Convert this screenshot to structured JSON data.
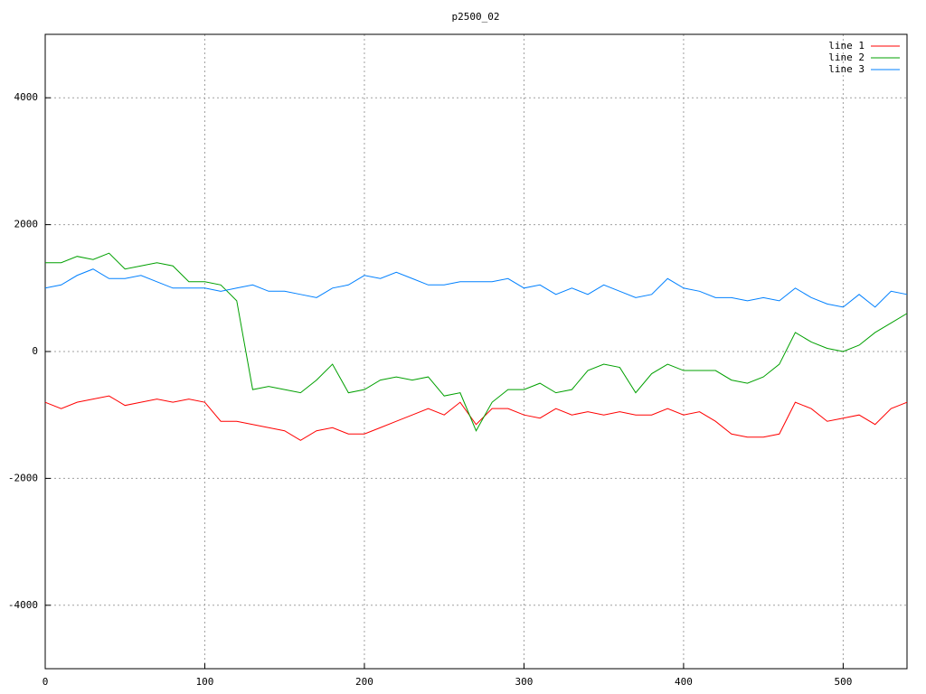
{
  "chart_data": {
    "type": "line",
    "title": "p2500_02",
    "x": [
      0,
      10,
      20,
      30,
      40,
      50,
      60,
      70,
      80,
      90,
      100,
      110,
      120,
      130,
      140,
      150,
      160,
      170,
      180,
      190,
      200,
      210,
      220,
      230,
      240,
      250,
      260,
      270,
      280,
      290,
      300,
      310,
      320,
      330,
      340,
      350,
      360,
      370,
      380,
      390,
      400,
      410,
      420,
      430,
      440,
      450,
      460,
      470,
      480,
      490,
      500,
      510,
      520,
      530,
      540
    ],
    "series": [
      {
        "name": "line 1",
        "color": "#ff0000",
        "values": [
          -800,
          -900,
          -800,
          -750,
          -700,
          -850,
          -800,
          -750,
          -800,
          -750,
          -800,
          -1100,
          -1100,
          -1150,
          -1200,
          -1250,
          -1400,
          -1250,
          -1200,
          -1300,
          -1300,
          -1200,
          -1100,
          -1000,
          -900,
          -1000,
          -800,
          -1150,
          -900,
          -900,
          -1000,
          -1050,
          -900,
          -1000,
          -950,
          -1000,
          -950,
          -1000,
          -1000,
          -900,
          -1000,
          -950,
          -1100,
          -1300,
          -1350,
          -1350,
          -1300,
          -800,
          -900,
          -1100,
          -1050,
          -1000,
          -1150,
          -900,
          -800
        ]
      },
      {
        "name": "line 2",
        "color": "#00a000",
        "values": [
          1400,
          1400,
          1500,
          1450,
          1550,
          1300,
          1350,
          1400,
          1350,
          1100,
          1100,
          1050,
          800,
          -600,
          -550,
          -600,
          -650,
          -450,
          -200,
          -650,
          -600,
          -450,
          -400,
          -450,
          -400,
          -700,
          -650,
          -1250,
          -800,
          -600,
          -600,
          -500,
          -650,
          -600,
          -300,
          -200,
          -250,
          -650,
          -350,
          -200,
          -300,
          -300,
          -300,
          -450,
          -500,
          -400,
          -200,
          300,
          150,
          50,
          0,
          100,
          300,
          450,
          600
        ]
      },
      {
        "name": "line 3",
        "color": "#0080ff",
        "values": [
          1000,
          1050,
          1200,
          1300,
          1150,
          1150,
          1200,
          1100,
          1000,
          1000,
          1000,
          950,
          1000,
          1050,
          950,
          950,
          900,
          850,
          1000,
          1050,
          1200,
          1150,
          1250,
          1150,
          1050,
          1050,
          1100,
          1100,
          1100,
          1150,
          1000,
          1050,
          900,
          1000,
          900,
          1050,
          950,
          850,
          900,
          1150,
          1000,
          950,
          850,
          850,
          800,
          850,
          800,
          1000,
          850,
          750,
          700,
          900,
          700,
          950,
          900
        ]
      }
    ],
    "xlim": [
      0,
      540
    ],
    "ylim": [
      -5000,
      5000
    ],
    "xticks": [
      0,
      100,
      200,
      300,
      400,
      500
    ],
    "yticks": [
      -4000,
      -2000,
      0,
      2000,
      4000
    ],
    "grid": true,
    "legend": "top-right"
  }
}
